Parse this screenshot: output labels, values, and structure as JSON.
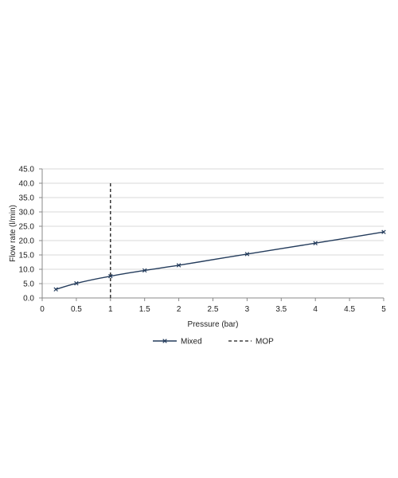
{
  "chart_data": {
    "type": "line",
    "title": "",
    "xlabel": "Pressure (bar)",
    "ylabel": "Flow rate (l/min)",
    "xlim": [
      0,
      5
    ],
    "ylim": [
      0,
      45
    ],
    "x_ticks": [
      "0",
      "0.5",
      "1",
      "1.5",
      "2",
      "2.5",
      "3",
      "3.5",
      "4",
      "4.5",
      "5"
    ],
    "y_ticks": [
      "0.0",
      "5.0",
      "10.0",
      "15.0",
      "20.0",
      "25.0",
      "30.0",
      "35.0",
      "40.0",
      "45.0"
    ],
    "grid": "horizontal",
    "legend_position": "bottom",
    "series": [
      {
        "name": "Mixed",
        "color": "#243c5c",
        "marker": "x",
        "x": [
          0.2,
          0.5,
          1,
          1.5,
          2,
          3,
          4,
          5
        ],
        "y": [
          3.0,
          5.1,
          7.6,
          9.6,
          11.4,
          15.3,
          19.1,
          23.0
        ]
      }
    ],
    "reference_lines": [
      {
        "name": "MOP",
        "x": 1,
        "y_range": [
          0,
          40
        ],
        "style": "dashed",
        "color": "#1a1a1a"
      }
    ]
  }
}
